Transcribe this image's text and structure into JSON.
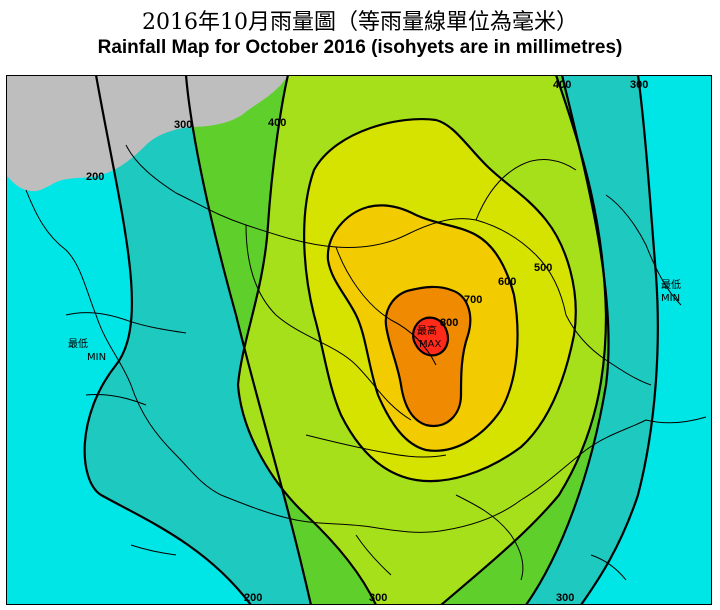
{
  "header": {
    "title_zh": "2016年10月雨量圖（等雨量線單位為毫米）",
    "title_en": "Rainfall Map for October 2016 (isohyets are in millimetres)"
  },
  "map": {
    "isohyet_labels": {
      "l200_left": "200",
      "l300_left": "300",
      "l400_top": "400",
      "l400_right": "400",
      "l300_right": "300",
      "l500": "500",
      "l600": "600",
      "l700": "700",
      "l800": "800",
      "l200_bottom": "200",
      "l300_bottom_mid": "300",
      "l300_bottom_right": "300"
    },
    "min_left": {
      "zh": "最低",
      "en": "MIN"
    },
    "min_right": {
      "zh": "最低",
      "en": "MIN"
    },
    "max_center": {
      "zh": "最高",
      "en": "MAX"
    },
    "colors": {
      "land_mainland": "#bebebe",
      "band_lt200": "#00e5e5",
      "band_200_300": "#1ec9c0",
      "band_300_400": "#5fcf2b",
      "band_400_500": "#a6e01a",
      "band_500_600": "#d6e300",
      "band_600_700": "#f2cc00",
      "band_700_800": "#f08a00",
      "band_gt800": "#ff2a1a",
      "isohyet": "#000000",
      "coastline": "#000000"
    }
  }
}
